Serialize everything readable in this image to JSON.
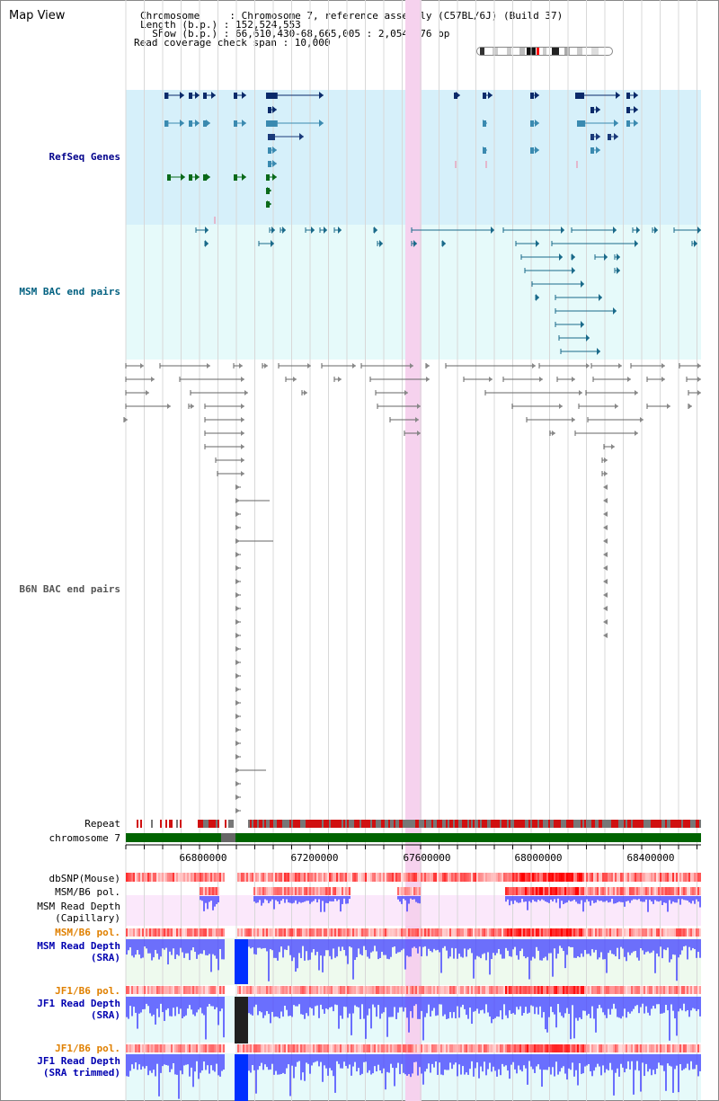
{
  "app": {
    "title": "Map View"
  },
  "header": {
    "chromosome_line": "Chromosome     : Chromosome 7, reference assembly (C57BL/6J) (Build 37)",
    "length_line": "Length (b.p.) : 152,524,553",
    "show_line": "  Show (b.p.) : 66,610,430-68,665,005 : 2,054,576 bp",
    "coverage_line": "Read coverage check span : 10,000"
  },
  "tracks": {
    "refseq": {
      "label": "RefSeq Genes",
      "color": "#00008b"
    },
    "msm_bac": {
      "label": "MSM BAC end pairs",
      "color": "#006080"
    },
    "b6n_bac": {
      "label": "B6N BAC end pairs",
      "color": "#555555"
    },
    "repeat": {
      "label": "Repeat"
    },
    "chromosome": {
      "label": "chromosome 7"
    },
    "dbsnp": {
      "label": "dbSNP(Mouse)"
    },
    "msm_b6_pol_1": {
      "label": "MSM/B6 pol."
    },
    "msm_depth_cap": {
      "label": "MSM Read Depth\n(Capillary)"
    },
    "msm_b6_pol_2": {
      "label": "MSM/B6 pol.",
      "color": "#e08000"
    },
    "msm_depth_sra": {
      "label": "MSM Read Depth\n(SRA)",
      "color": "#0000b0"
    },
    "jf1_b6_pol_1": {
      "label": "JF1/B6 pol.",
      "color": "#e08000"
    },
    "jf1_depth_sra": {
      "label": "JF1 Read Depth\n(SRA)",
      "color": "#0000b0"
    },
    "jf1_b6_pol_2": {
      "label": "JF1/B6 pol.",
      "color": "#e08000"
    },
    "jf1_depth_trim": {
      "label": "JF1 Read Depth\n(SRA trimmed)",
      "color": "#0000b0"
    }
  },
  "axis": {
    "ticks": [
      "66800000",
      "67200000",
      "67600000",
      "68000000",
      "68400000"
    ]
  },
  "colors": {
    "refseq_bg": "#d6f0fa",
    "msm_bg": "#e6fafa",
    "highlight": "#f6d2ee",
    "chromosome_bar": "#006400",
    "snp_red": "#e00000",
    "depth_blue": "#4040ff"
  }
}
